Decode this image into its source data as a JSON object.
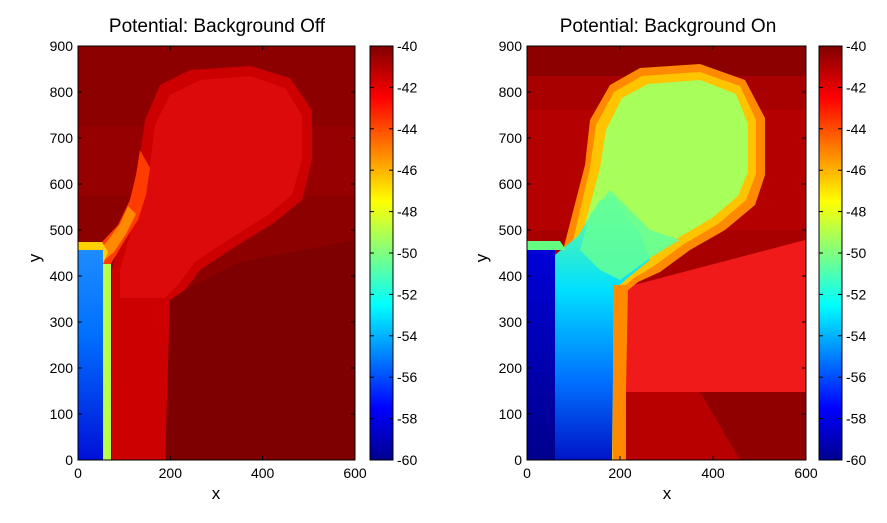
{
  "colors": {
    "background": "#ffffff",
    "axis": "#000000",
    "colormap": "jet",
    "colormap_stops": [
      "#00008f",
      "#0000ff",
      "#00ffff",
      "#ffff00",
      "#ff0000",
      "#800000"
    ]
  },
  "chart_data": [
    {
      "type": "heatmap",
      "title": "Potential: Background Off",
      "xlabel": "x",
      "ylabel": "y",
      "xlim": [
        0,
        600
      ],
      "ylim": [
        0,
        900
      ],
      "xticks": [
        "0",
        "200",
        "400",
        "600"
      ],
      "yticks": [
        "0",
        "100",
        "200",
        "300",
        "400",
        "500",
        "600",
        "700",
        "800",
        "900"
      ],
      "colorbar": {
        "range": [
          -60,
          -40
        ],
        "ticks": [
          "-40",
          "-42",
          "-44",
          "-46",
          "-48",
          "-50",
          "-52",
          "-54",
          "-56",
          "-58",
          "-60"
        ]
      },
      "regions": [
        {
          "name": "background",
          "value": -40.5
        },
        {
          "name": "lower-right zone",
          "value": -40.8
        },
        {
          "name": "middle zone",
          "value": -41.3
        },
        {
          "name": "bulb body",
          "value": -42
        },
        {
          "name": "bulb rim",
          "value": -41.5
        },
        {
          "name": "neck gradient",
          "value": -44
        },
        {
          "name": "left contact",
          "value": -55
        },
        {
          "name": "left contact edge",
          "value": -49
        }
      ]
    },
    {
      "type": "heatmap",
      "title": "Potential: Background On",
      "xlabel": "x",
      "ylabel": "y",
      "xlim": [
        0,
        600
      ],
      "ylim": [
        0,
        900
      ],
      "xticks": [
        "0",
        "200",
        "400",
        "600"
      ],
      "yticks": [
        "0",
        "100",
        "200",
        "300",
        "400",
        "500",
        "600",
        "700",
        "800",
        "900"
      ],
      "colorbar": {
        "range": [
          -60,
          -40
        ],
        "ticks": [
          "-40",
          "-42",
          "-44",
          "-46",
          "-48",
          "-50",
          "-52",
          "-54",
          "-56",
          "-58",
          "-60"
        ]
      },
      "regions": [
        {
          "name": "background",
          "value": -41
        },
        {
          "name": "bulb body",
          "value": -48.5
        },
        {
          "name": "bulb rim",
          "value": -45
        },
        {
          "name": "stem gradient",
          "value": -53
        },
        {
          "name": "right block",
          "value": -42
        },
        {
          "name": "lower-right corner",
          "value": -40.5
        },
        {
          "name": "left contact",
          "value": -59
        },
        {
          "name": "left contact top",
          "value": -50
        }
      ]
    }
  ]
}
